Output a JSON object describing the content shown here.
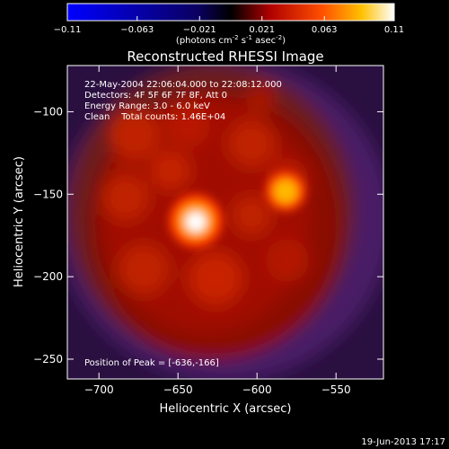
{
  "chart_data": {
    "type": "heatmap",
    "title": "Reconstructed RHESSI Image",
    "xlabel": "Heliocentric X (arcsec)",
    "ylabel": "Heliocentric Y (arcsec)",
    "xlim": [
      -720,
      -520
    ],
    "ylim": [
      -262,
      -72
    ],
    "xticks": [
      -700,
      -650,
      -600,
      -550
    ],
    "yticks": [
      -100,
      -150,
      -200,
      -250
    ],
    "colorbar": {
      "min": -0.11,
      "max": 0.11,
      "ticks": [
        "-0.11",
        "-0.063",
        "-0.021",
        "0.021",
        "0.063",
        "0.11"
      ],
      "tick_values": [
        -0.11,
        -0.063,
        -0.021,
        0.021,
        0.063,
        0.11
      ],
      "label_text": "(photons cm",
      "label_exp1": "-2",
      "label_mid": " s",
      "label_exp2": "-1",
      "label_mid2": " asec",
      "label_exp3": "-2",
      "label_end": ")"
    },
    "annotations": [
      "22-May-2004 22:06:04.000 to 22:08:12.000",
      "Detectors: 4F 5F 6F 7F 8F, Att 0",
      "Energy Range: 3.0 - 6.0 keV",
      "Clean    Total counts: 1.46E+04"
    ],
    "peak_label": "Position of Peak = [-636,-166]",
    "peak": [
      -636,
      -166
    ],
    "secondary_peak": [
      -585,
      -147
    ],
    "timestamp": "19-Jun-2013 17:17"
  }
}
